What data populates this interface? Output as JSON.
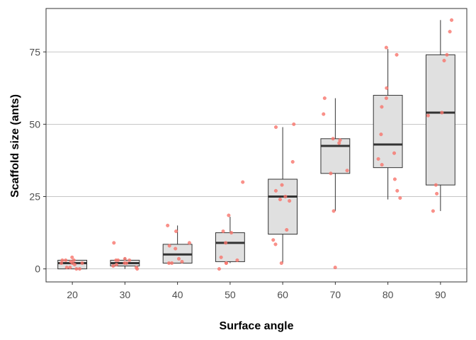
{
  "chart_data": {
    "type": "box",
    "xlabel": "Surface angle",
    "ylabel": "Scaffold size (ants)",
    "categories": [
      "20",
      "30",
      "40",
      "50",
      "60",
      "70",
      "80",
      "90"
    ],
    "yticks": [
      0,
      25,
      50,
      75
    ],
    "ylim": [
      -4.5,
      90
    ],
    "grid": "horizontal major",
    "legend": "none",
    "colors": {
      "box_fill": "#e0e0e0",
      "box_stroke": "#333333",
      "point": "#f8766d",
      "grid": "#b3b3b3",
      "panel_border": "#333333"
    },
    "boxes": [
      {
        "category": "20",
        "min": 0,
        "q1": 0,
        "median": 2,
        "q3": 3,
        "max": 3
      },
      {
        "category": "30",
        "min": 0,
        "q1": 1,
        "median": 2,
        "q3": 3,
        "max": 4
      },
      {
        "category": "40",
        "min": 2,
        "q1": 2,
        "median": 5,
        "q3": 8.5,
        "max": 15
      },
      {
        "category": "50",
        "min": 2,
        "q1": 2.5,
        "median": 9,
        "q3": 12.5,
        "max": 18
      },
      {
        "category": "60",
        "min": 2,
        "q1": 12,
        "median": 25,
        "q3": 31,
        "max": 49
      },
      {
        "category": "70",
        "min": 20,
        "q1": 33,
        "median": 42.5,
        "q3": 45,
        "max": 59
      },
      {
        "category": "80",
        "min": 24,
        "q1": 35,
        "median": 43,
        "q3": 60,
        "max": 76
      },
      {
        "category": "90",
        "min": 20,
        "q1": 29,
        "median": 54,
        "q3": 74,
        "max": 86
      }
    ],
    "points": [
      {
        "category": "20",
        "values": [
          4,
          3,
          3,
          3,
          2.5,
          2,
          2,
          2,
          1.5,
          0.5,
          0.5,
          0,
          0
        ]
      },
      {
        "category": "30",
        "values": [
          9,
          3.5,
          3,
          3,
          3,
          2,
          2,
          1.5,
          1,
          0.5,
          0
        ]
      },
      {
        "category": "40",
        "values": [
          15,
          13,
          9,
          8,
          7,
          3.5,
          2.5,
          2,
          2
        ]
      },
      {
        "category": "50",
        "values": [
          30,
          18.5,
          13,
          12.5,
          9,
          4,
          3,
          2,
          2,
          0
        ]
      },
      {
        "category": "60",
        "values": [
          50,
          49,
          37,
          29,
          27,
          25,
          24,
          23.5,
          13.5,
          10,
          8.5,
          2
        ]
      },
      {
        "category": "70",
        "values": [
          59,
          53.5,
          45,
          44.5,
          43.5,
          34,
          33,
          20,
          0.5
        ]
      },
      {
        "category": "80",
        "values": [
          76.5,
          74,
          62.5,
          59,
          56,
          46.5,
          40,
          38,
          36,
          31,
          27,
          24.5
        ]
      },
      {
        "category": "90",
        "values": [
          86,
          82,
          74,
          72,
          54,
          53,
          29,
          26,
          20
        ]
      }
    ]
  }
}
